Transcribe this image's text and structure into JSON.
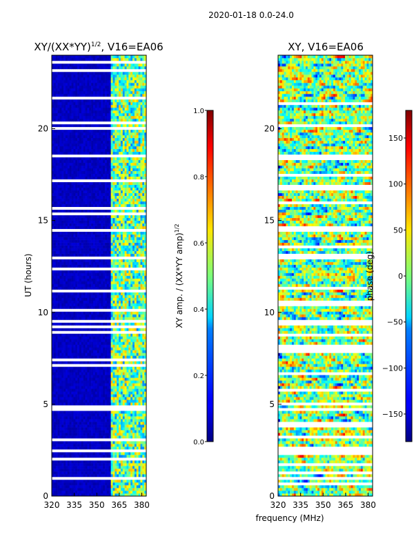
{
  "figure_title": "2020-01-18 0.0-24.0",
  "xlabel": "frequency (MHz)",
  "chart_data": [
    {
      "type": "heatmap",
      "title": "XY/(XX*YY)^1/2, V16=EA06",
      "title_main": "XY/(XX*YY)",
      "title_sup": "1/2",
      "title_tail": ", V16=EA06",
      "xlabel": "frequency (MHz)",
      "ylabel": "UT (hours)",
      "xlim": [
        320,
        383
      ],
      "ylim": [
        0,
        24
      ],
      "xticks": [
        320,
        335,
        350,
        365,
        380
      ],
      "yticks": [
        0,
        5,
        10,
        15,
        20
      ],
      "colorbar": {
        "label": "XY amp. / (XX*YY amp)^1/2",
        "label_main": "XY amp. / (XX*YY amp)",
        "label_sup": "1/2",
        "range": [
          0.0,
          1.0
        ],
        "ticks": [
          "0.0",
          "0.2",
          "0.4",
          "0.6",
          "0.8",
          "1.0"
        ],
        "tick_values": [
          0.0,
          0.2,
          0.4,
          0.6,
          0.8,
          1.0
        ],
        "colormap": "jet"
      },
      "description": "low amplitude (~0.05) below ~360 MHz, elevated amplitude (0.3-0.7) in 360-383 MHz band; many flagged (white) time rows"
    },
    {
      "type": "heatmap",
      "title": "XY, V16=EA06",
      "xlabel": "frequency (MHz)",
      "ylabel": "",
      "xlim": [
        320,
        383
      ],
      "ylim": [
        0,
        24
      ],
      "xticks": [
        320,
        335,
        350,
        365,
        380
      ],
      "yticks": [
        0,
        5,
        10,
        15,
        20
      ],
      "colorbar": {
        "label": "phase (deg)",
        "range": [
          -180,
          180
        ],
        "ticks": [
          "150",
          "100",
          "50",
          "0",
          "−50",
          "−100",
          "−150"
        ],
        "tick_values": [
          150,
          100,
          50,
          0,
          -50,
          -100,
          -150
        ],
        "colormap": "jet"
      },
      "description": "noisy phase values spanning full -180 to 180 range with flagged (white) rows"
    }
  ]
}
